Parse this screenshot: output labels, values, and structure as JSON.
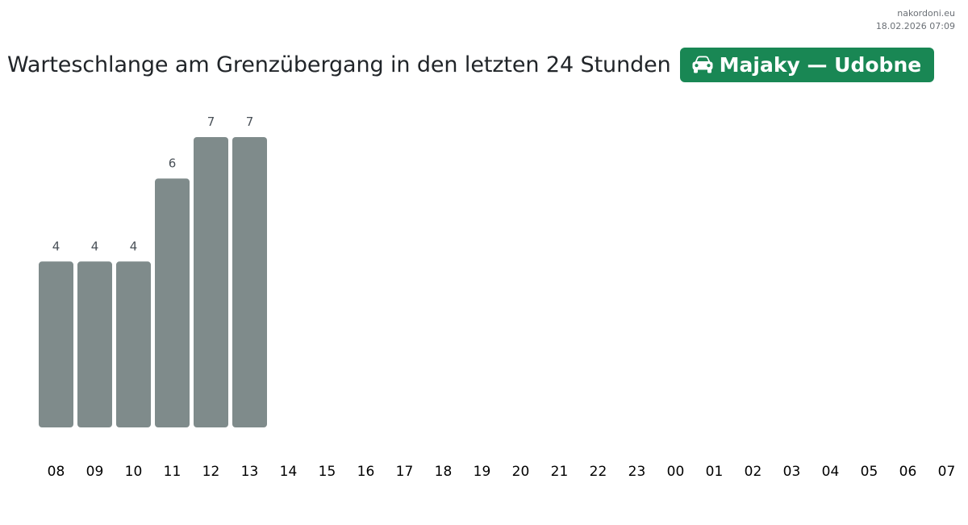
{
  "header": {
    "site": "nakordoni.eu",
    "timestamp": "18.02.2026 07:09"
  },
  "title": "Warteschlange am Grenzübergang in den letzten 24 Stunden",
  "badge": {
    "icon": "car-icon",
    "label": "Majaky — Udobne",
    "color": "#198754"
  },
  "chart_data": {
    "type": "bar",
    "categories": [
      "08",
      "09",
      "10",
      "11",
      "12",
      "13",
      "14",
      "15",
      "16",
      "17",
      "18",
      "19",
      "20",
      "21",
      "22",
      "23",
      "00",
      "01",
      "02",
      "03",
      "04",
      "05",
      "06",
      "07"
    ],
    "values": [
      4,
      4,
      4,
      6,
      7,
      7,
      null,
      null,
      null,
      null,
      null,
      null,
      null,
      null,
      null,
      null,
      null,
      null,
      null,
      null,
      null,
      null,
      null,
      null
    ],
    "ylim": [
      0,
      7
    ],
    "bar_color": "#7f8b8b",
    "data_labels": true,
    "grid": false,
    "title": "",
    "xlabel": "",
    "ylabel": ""
  }
}
